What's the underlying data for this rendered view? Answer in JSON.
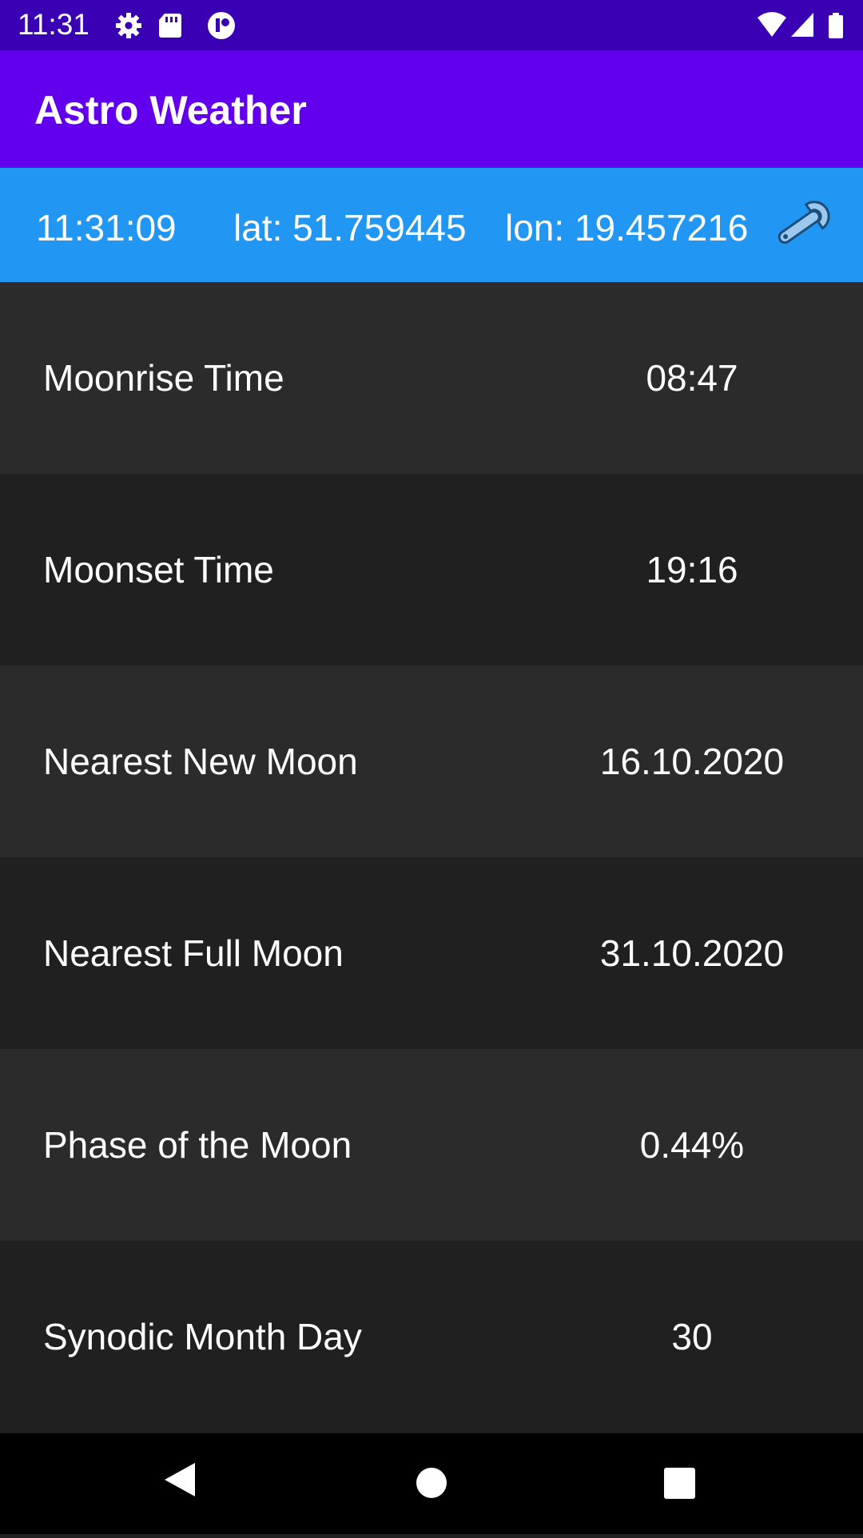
{
  "status_bar": {
    "time": "11:31",
    "icons_left": [
      "gear-icon",
      "sd-card-icon",
      "app-notification-icon"
    ],
    "icons_right": [
      "wifi-icon",
      "cell-signal-icon",
      "battery-icon"
    ]
  },
  "app_bar": {
    "title": "Astro Weather"
  },
  "info_bar": {
    "time": "11:31:09",
    "lat": "lat: 51.759445",
    "lon": "lon: 19.457216",
    "settings_icon": "wrench-icon"
  },
  "rows": [
    {
      "label": "Moonrise Time",
      "value": "08:47"
    },
    {
      "label": "Moonset Time",
      "value": "19:16"
    },
    {
      "label": "Nearest New Moon",
      "value": "16.10.2020"
    },
    {
      "label": "Nearest Full Moon",
      "value": "31.10.2020"
    },
    {
      "label": "Phase of the Moon",
      "value": "0.44%"
    },
    {
      "label": "Synodic Month Day",
      "value": "30"
    }
  ],
  "nav_bar": {
    "buttons": [
      "back-icon",
      "home-icon",
      "recents-icon"
    ]
  },
  "colors": {
    "status_bar": "#3a00b3",
    "app_bar": "#6200ee",
    "info_bar": "#2196f3",
    "row_light": "#2b2b2b",
    "row_dark": "#202020"
  }
}
